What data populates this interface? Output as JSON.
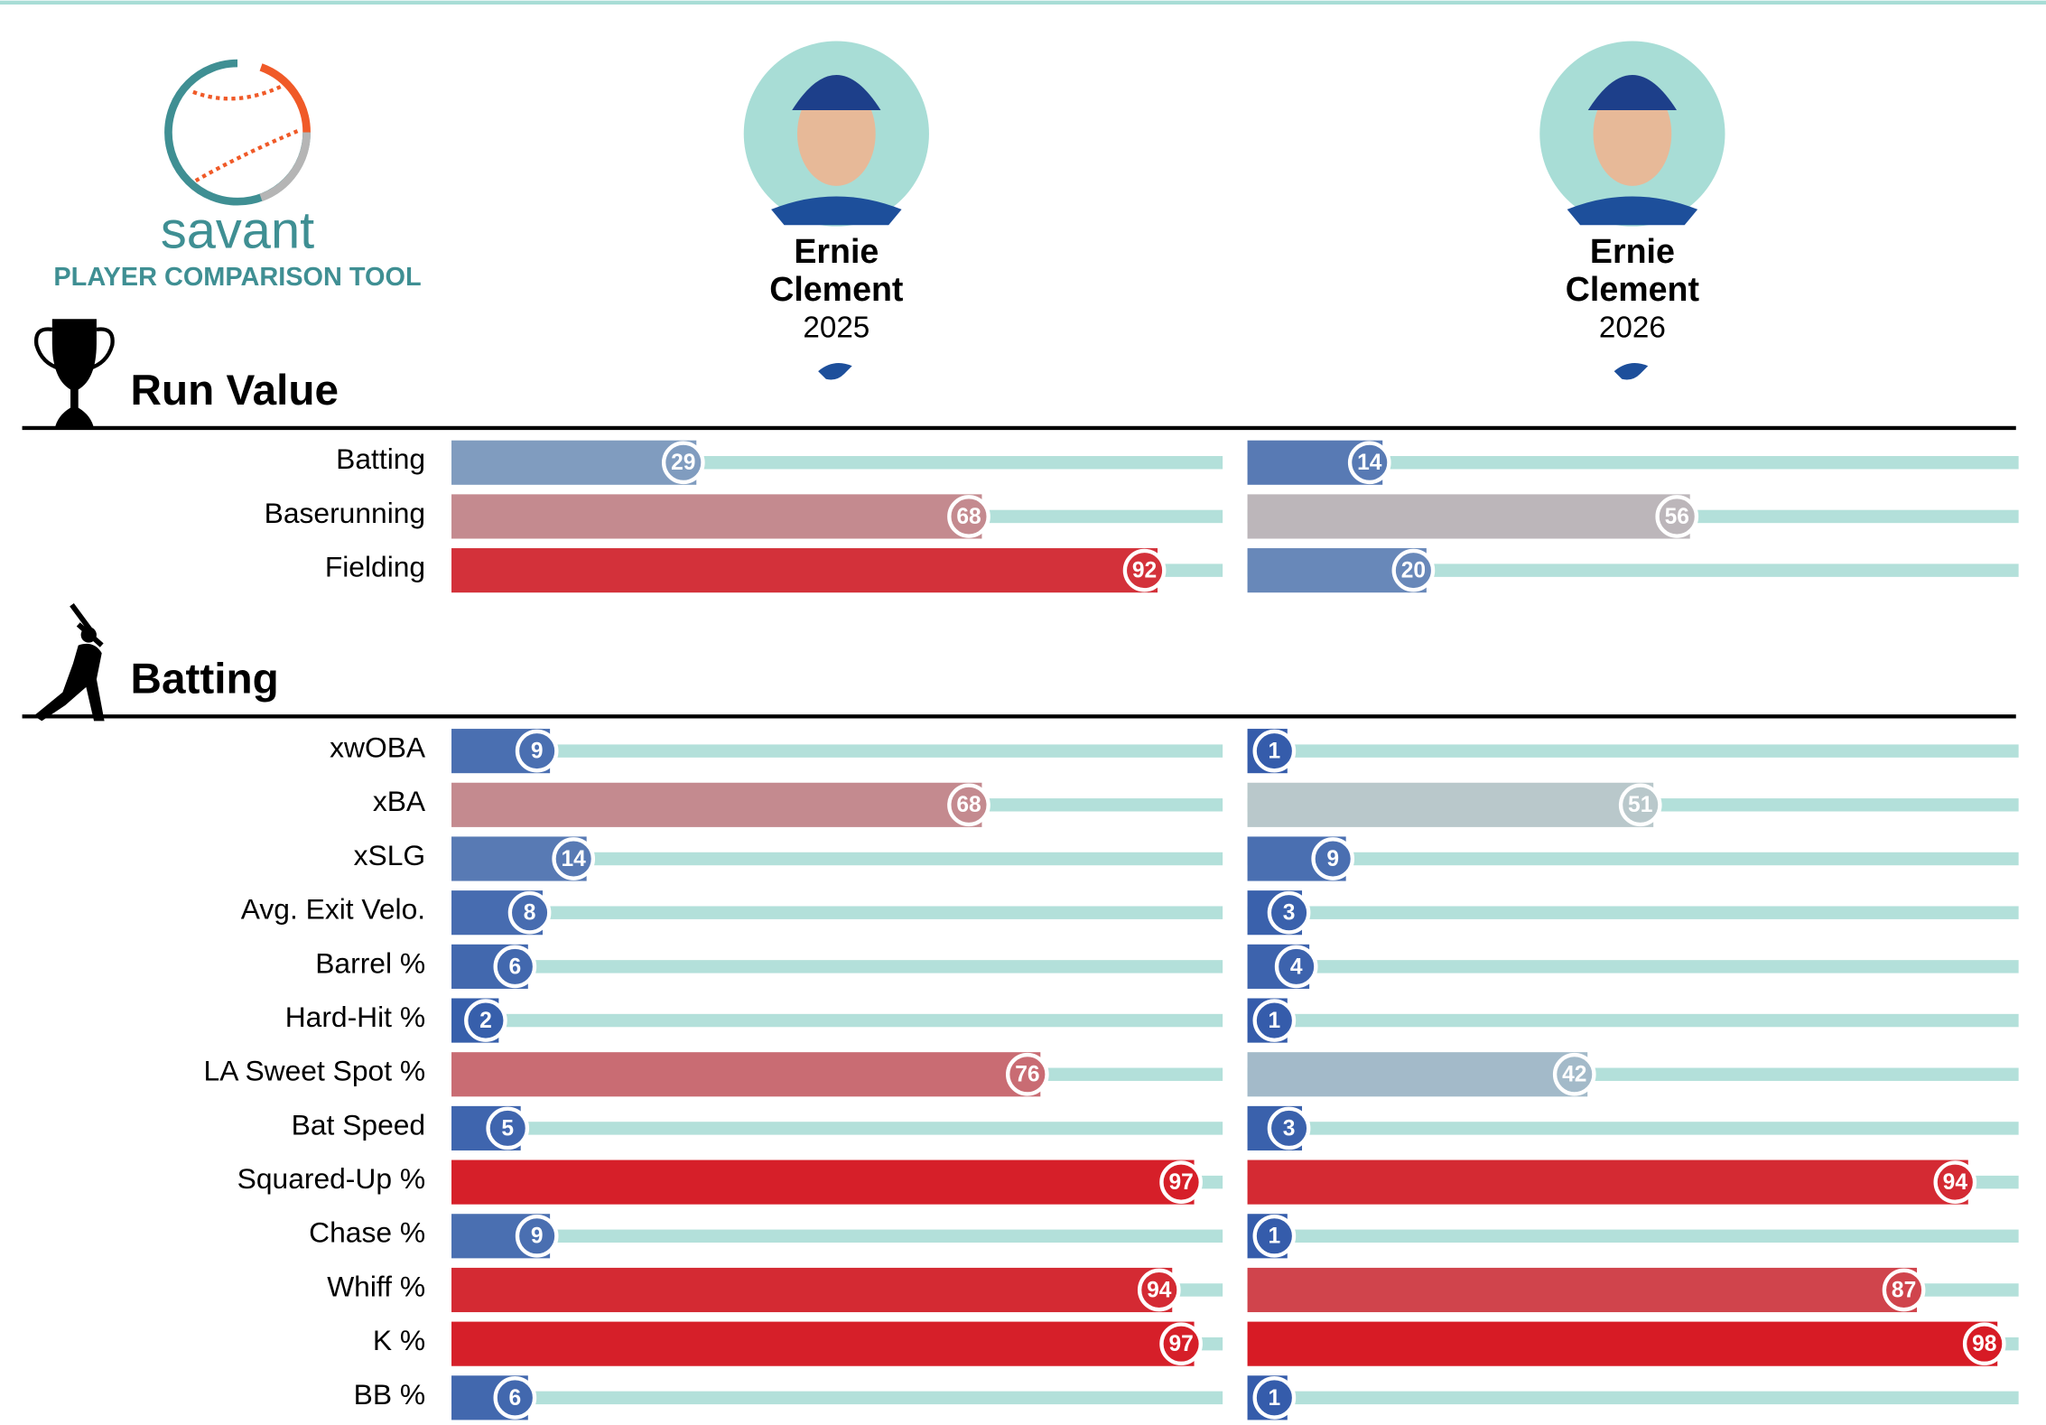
{
  "header": {
    "brand": "savant",
    "subtitle": "PLAYER COMPARISON TOOL"
  },
  "players": [
    {
      "first": "Ernie",
      "last": "Clement",
      "season": "2025"
    },
    {
      "first": "Ernie",
      "last": "Clement",
      "season": "2026"
    }
  ],
  "sections": [
    {
      "title": "Run Value",
      "metrics": [
        {
          "label": "Batting",
          "values": [
            29,
            14
          ]
        },
        {
          "label": "Baserunning",
          "values": [
            68,
            56
          ]
        },
        {
          "label": "Fielding",
          "values": [
            92,
            20
          ]
        }
      ]
    },
    {
      "title": "Batting",
      "metrics": [
        {
          "label": "xwOBA",
          "values": [
            9,
            1
          ]
        },
        {
          "label": "xBA",
          "values": [
            68,
            51
          ]
        },
        {
          "label": "xSLG",
          "values": [
            14,
            9
          ]
        },
        {
          "label": "Avg. Exit Velo.",
          "values": [
            8,
            3
          ]
        },
        {
          "label": "Barrel %",
          "values": [
            6,
            4
          ]
        },
        {
          "label": "Hard-Hit %",
          "values": [
            2,
            1
          ]
        },
        {
          "label": "LA Sweet Spot %",
          "values": [
            76,
            42
          ]
        },
        {
          "label": "Bat Speed",
          "values": [
            5,
            3
          ]
        },
        {
          "label": "Squared-Up %",
          "values": [
            97,
            94
          ]
        },
        {
          "label": "Chase %",
          "values": [
            9,
            1
          ]
        },
        {
          "label": "Whiff %",
          "values": [
            94,
            87
          ]
        },
        {
          "label": "K %",
          "values": [
            97,
            98
          ]
        },
        {
          "label": "BB %",
          "values": [
            6,
            1
          ]
        }
      ]
    }
  ]
}
